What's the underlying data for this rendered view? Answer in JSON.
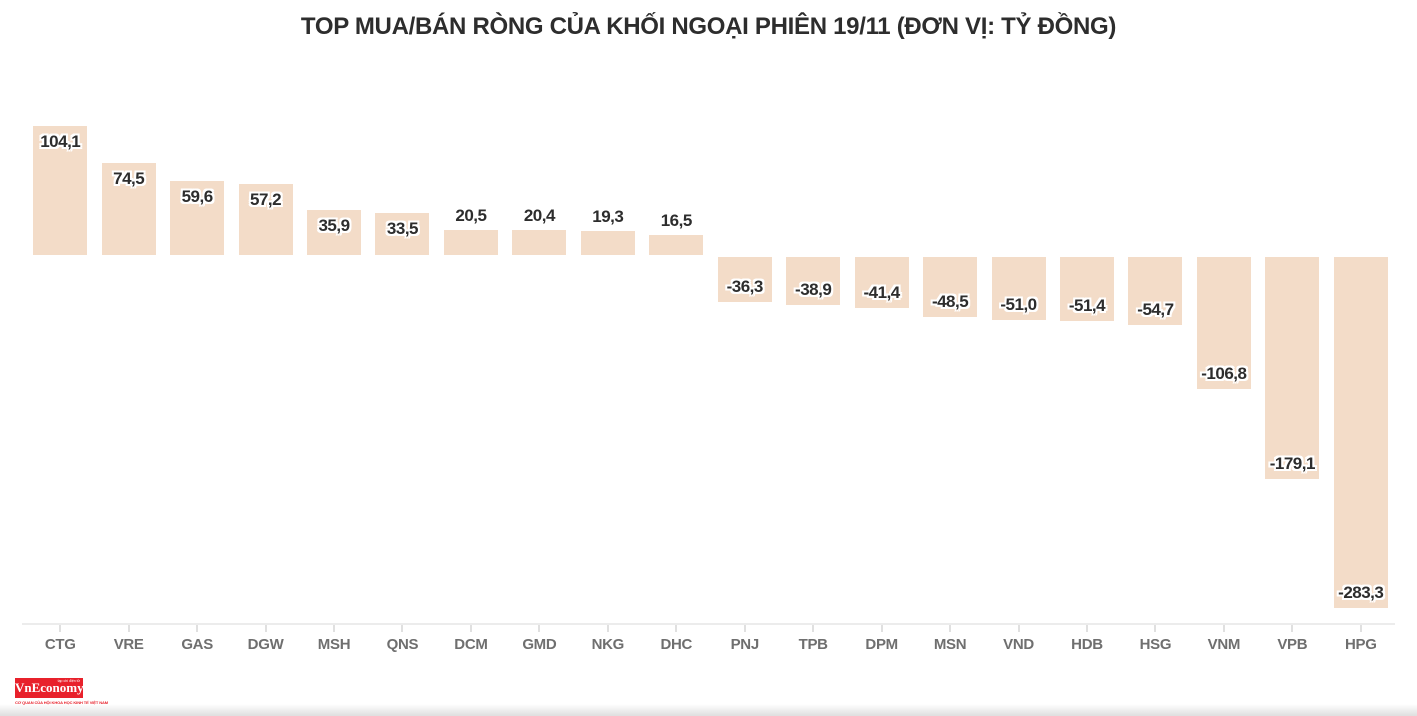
{
  "title": "TOP MUA/BÁN RÒNG CỦA KHỐI NGOẠI PHIÊN 19/11 (ĐƠN VỊ: TỶ ĐỒNG)",
  "chart_data": {
    "type": "bar",
    "title": "TOP MUA/BÁN RÒNG CỦA KHỐI NGOẠI PHIÊN 19/11 (ĐƠN VỊ: TỶ ĐỒNG)",
    "unit": "tỷ đồng",
    "categories": [
      "CTG",
      "VRE",
      "GAS",
      "DGW",
      "MSH",
      "QNS",
      "DCM",
      "GMD",
      "NKG",
      "DHC",
      "PNJ",
      "TPB",
      "DPM",
      "MSN",
      "VND",
      "HDB",
      "HSG",
      "VNM",
      "VPB",
      "HPG"
    ],
    "values": [
      104.1,
      74.5,
      59.6,
      57.2,
      35.9,
      33.5,
      20.5,
      20.4,
      19.3,
      16.5,
      -36.3,
      -38.9,
      -41.4,
      -48.5,
      -51.0,
      -51.4,
      -54.7,
      -106.8,
      -179.1,
      -283.3
    ],
    "xlabel": "",
    "ylabel": "",
    "ylim": [
      -300,
      120
    ],
    "grid": false,
    "legend": false,
    "decimal_separator": ",",
    "bar_color": "#f3dcc8",
    "value_label_color": "#2d2d2d",
    "axis_label_color": "#6f6f6f",
    "axis_line_color": "#ececec",
    "title_color": "#2d2d2d",
    "background_color": "#ffffff"
  },
  "footer": {
    "logo": {
      "name": "VnEconomy",
      "top_text": "tạp chí điện tử",
      "tagline": "CƠ QUAN CỦA HỘI KHOA HỌC KINH TẾ VIỆT NAM",
      "bg_color": "#e8212b",
      "text_color": "#ffffff"
    }
  }
}
